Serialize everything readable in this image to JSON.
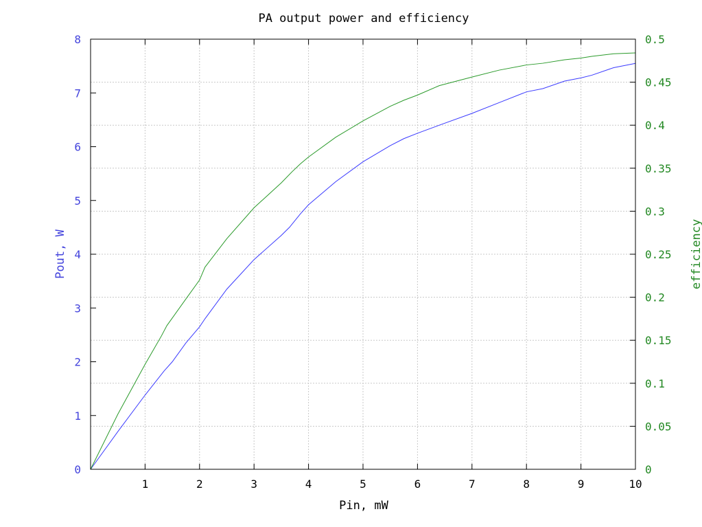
{
  "chart_data": {
    "type": "line",
    "title": "PA output power and efficiency",
    "xlabel": "Pin, mW",
    "ylabel_left": "Pout, W",
    "ylabel_right": "efficiency",
    "xlim": [
      0,
      10
    ],
    "ylim_left": [
      0,
      8
    ],
    "ylim_right": [
      0,
      0.5
    ],
    "x_ticks": [
      1,
      2,
      3,
      4,
      5,
      6,
      7,
      8,
      9,
      10
    ],
    "y_ticks_left": [
      0,
      1,
      2,
      3,
      4,
      5,
      6,
      7,
      8
    ],
    "y_ticks_right": [
      0,
      0.05,
      0.1,
      0.15,
      0.2,
      0.25,
      0.3,
      0.35,
      0.4,
      0.45,
      0.5
    ],
    "grid": true,
    "colors": {
      "left_axis": "#4444dd",
      "right_axis": "#228822",
      "pout": "#3a3aff",
      "efficiency": "#2a9a2a"
    },
    "series": [
      {
        "axis": "left",
        "x": [
          0,
          0.5,
          1.0,
          1.35,
          1.5,
          1.75,
          2.0,
          2.1,
          2.5,
          3.0,
          3.5,
          3.65,
          3.85,
          4.0,
          4.5,
          5.0,
          5.5,
          5.75,
          6.0,
          6.4,
          7.0,
          7.5,
          8.0,
          8.3,
          8.7,
          9.0,
          9.2,
          9.6,
          10.0
        ],
        "y": [
          0,
          0.7,
          1.38,
          1.83,
          2.0,
          2.35,
          2.65,
          2.8,
          3.35,
          3.9,
          4.35,
          4.5,
          4.75,
          4.92,
          5.35,
          5.72,
          6.02,
          6.15,
          6.25,
          6.4,
          6.62,
          6.82,
          7.02,
          7.08,
          7.22,
          7.28,
          7.33,
          7.47,
          7.55
        ]
      },
      {
        "axis": "right",
        "x": [
          0,
          0.5,
          1.0,
          1.3,
          1.4,
          1.75,
          2.0,
          2.1,
          2.5,
          3.0,
          3.5,
          3.7,
          3.85,
          4.0,
          4.5,
          5.0,
          5.5,
          5.75,
          6.0,
          6.4,
          7.0,
          7.5,
          8.0,
          8.3,
          8.7,
          9.0,
          9.2,
          9.6,
          10.0
        ],
        "y": [
          0,
          0.064,
          0.122,
          0.155,
          0.167,
          0.198,
          0.22,
          0.235,
          0.268,
          0.304,
          0.333,
          0.346,
          0.355,
          0.363,
          0.386,
          0.405,
          0.422,
          0.429,
          0.435,
          0.446,
          0.456,
          0.464,
          0.47,
          0.472,
          0.476,
          0.478,
          0.48,
          0.483,
          0.484
        ]
      }
    ]
  }
}
